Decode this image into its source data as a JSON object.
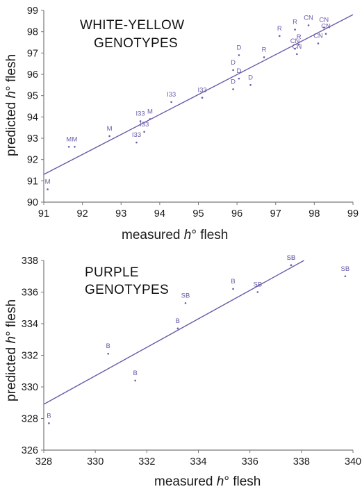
{
  "colors": {
    "fit_line": "#6a5aa8",
    "points": "#6a5aa8",
    "axes": "#777777",
    "text": "#1a1a1a"
  },
  "chart_data": [
    {
      "type": "scatter",
      "title_lines": [
        "WHITE-YELLOW",
        "GENOTYPES"
      ],
      "xlabel_parts": [
        "measured ",
        "h",
        "° flesh"
      ],
      "ylabel_parts": [
        "predicted ",
        "h",
        "° flesh"
      ],
      "xlim": [
        91,
        99
      ],
      "ylim": [
        90,
        99
      ],
      "xticks": [
        91,
        92,
        93,
        94,
        95,
        96,
        97,
        98,
        99
      ],
      "yticks": [
        90,
        91,
        92,
        93,
        94,
        95,
        96,
        97,
        98,
        99
      ],
      "grid": false,
      "fit_line": {
        "x": [
          91,
          99
        ],
        "y": [
          91.3,
          98.8
        ]
      },
      "points": [
        {
          "label": "M",
          "x": 91.1,
          "y": 90.6
        },
        {
          "label": "M",
          "x": 91.65,
          "y": 92.6
        },
        {
          "label": "M",
          "x": 91.8,
          "y": 92.6
        },
        {
          "label": "M",
          "x": 92.7,
          "y": 93.1
        },
        {
          "label": "I33",
          "x": 93.4,
          "y": 92.8
        },
        {
          "label": "I33",
          "x": 93.6,
          "y": 93.3
        },
        {
          "label": "I33",
          "x": 93.5,
          "y": 93.8
        },
        {
          "label": "M",
          "x": 93.75,
          "y": 93.9
        },
        {
          "label": "I33",
          "x": 94.3,
          "y": 94.7
        },
        {
          "label": "I33",
          "x": 95.1,
          "y": 94.9
        },
        {
          "label": "D",
          "x": 95.9,
          "y": 95.3
        },
        {
          "label": "D",
          "x": 95.9,
          "y": 96.2
        },
        {
          "label": "D",
          "x": 96.05,
          "y": 95.8
        },
        {
          "label": "D",
          "x": 96.05,
          "y": 96.9
        },
        {
          "label": "D",
          "x": 96.35,
          "y": 95.5
        },
        {
          "label": "R",
          "x": 96.7,
          "y": 96.8
        },
        {
          "label": "R",
          "x": 97.1,
          "y": 97.8
        },
        {
          "label": "R",
          "x": 97.5,
          "y": 98.1
        },
        {
          "label": "R",
          "x": 97.6,
          "y": 97.4
        },
        {
          "label": "CN",
          "x": 97.5,
          "y": 97.2
        },
        {
          "label": "CN",
          "x": 97.55,
          "y": 96.95
        },
        {
          "label": "CN",
          "x": 97.85,
          "y": 98.3
        },
        {
          "label": "CN",
          "x": 98.1,
          "y": 97.45
        },
        {
          "label": "CN",
          "x": 98.25,
          "y": 98.2
        },
        {
          "label": "CN",
          "x": 98.3,
          "y": 97.9
        }
      ]
    },
    {
      "type": "scatter",
      "title_lines": [
        "PURPLE",
        "GENOTYPES"
      ],
      "xlabel_parts": [
        "measured ",
        "h",
        "° flesh"
      ],
      "ylabel_parts": [
        "predicted ",
        "h",
        "° flesh"
      ],
      "xlim": [
        328,
        340
      ],
      "ylim": [
        326,
        338
      ],
      "xticks": [
        328,
        330,
        332,
        334,
        336,
        338,
        340
      ],
      "yticks": [
        326,
        328,
        330,
        332,
        334,
        336,
        338
      ],
      "grid": false,
      "fit_line": {
        "x": [
          328,
          338.1
        ],
        "y": [
          328.9,
          338
        ]
      },
      "points": [
        {
          "label": "B",
          "x": 328.2,
          "y": 327.7
        },
        {
          "label": "B",
          "x": 330.5,
          "y": 332.1
        },
        {
          "label": "B",
          "x": 331.55,
          "y": 330.4
        },
        {
          "label": "B",
          "x": 333.2,
          "y": 333.7
        },
        {
          "label": "SB",
          "x": 333.5,
          "y": 335.3
        },
        {
          "label": "B",
          "x": 335.35,
          "y": 336.2
        },
        {
          "label": "SB",
          "x": 336.3,
          "y": 336.0
        },
        {
          "label": "SB",
          "x": 337.6,
          "y": 337.7
        },
        {
          "label": "SB",
          "x": 337.6,
          "y": 337.7
        },
        {
          "label": "SB",
          "x": 339.7,
          "y": 337.0
        }
      ]
    }
  ]
}
